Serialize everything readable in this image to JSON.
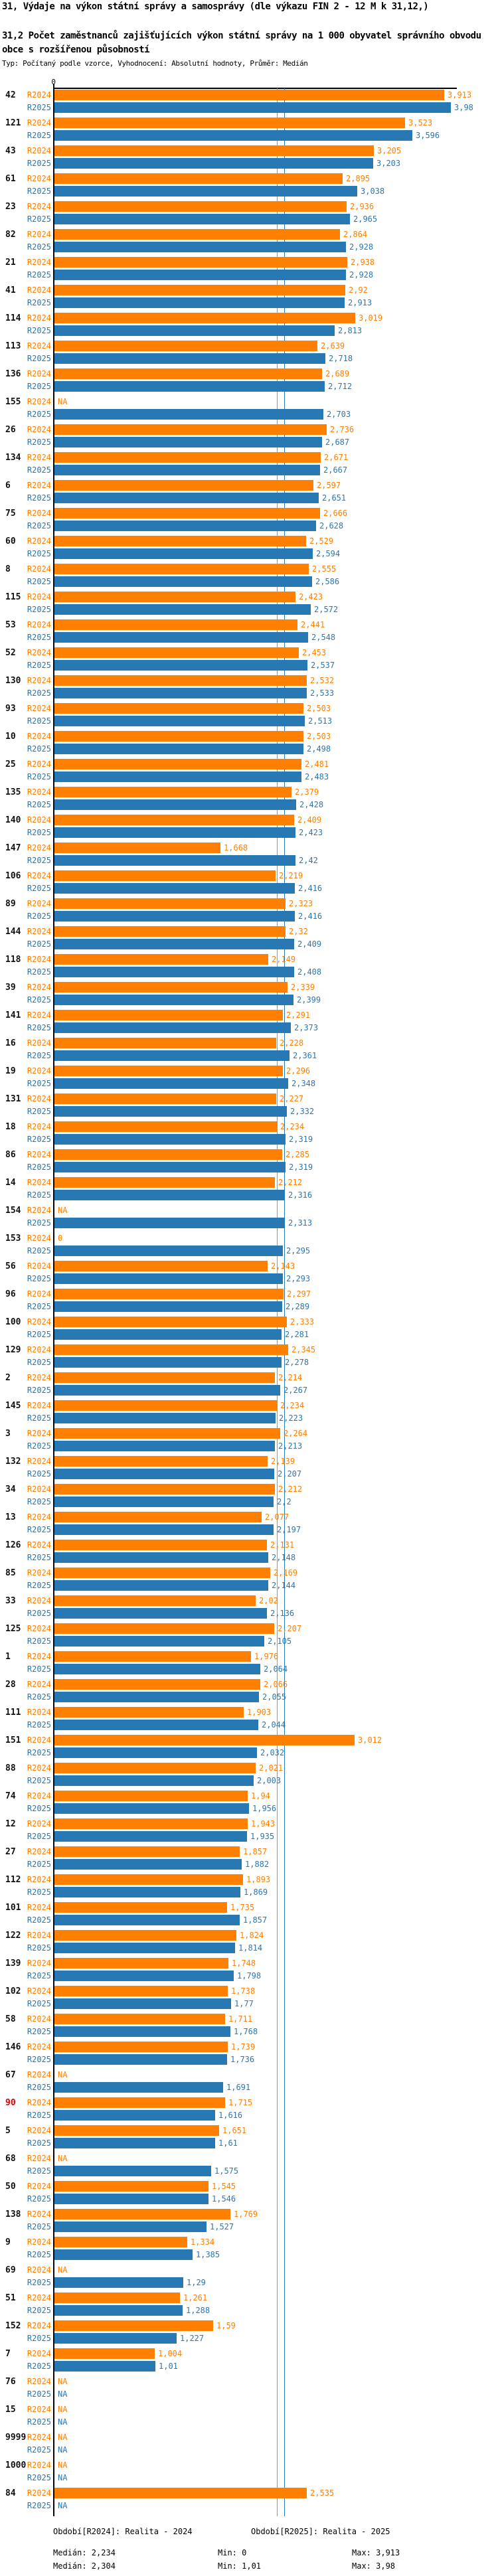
{
  "header": {
    "title_line1": "31, Výdaje na výkon státní správy a samosprávy (dle výkazu FIN 2 - 12 M k 31,12,)",
    "title_line2": "31,2 Počet zaměstnanců zajišťujících výkon státní správy na 1 000 obyvatel správního obvodu obce s rozšířenou působností",
    "subtitle": "Typ: Počítaný podle vzorce, Vyhodnocení: Absolutní hodnoty, Průměr: Medián"
  },
  "axis": {
    "zero_tick_label": "0"
  },
  "colors": {
    "r2024": "#ff8000",
    "r2025": "#2878b4",
    "highlight_id": "#e30000",
    "id_text": "#111111"
  },
  "chart_data": {
    "type": "bar",
    "orientation": "horizontal",
    "series_labels": {
      "r2024": "R2024",
      "r2025": "R2025"
    },
    "legend": {
      "r2024": "Období[R2024]: Realita - 2024",
      "r2025": "Období[R2025]: Realita - 2025"
    },
    "stats": {
      "median_r2024": 2.234,
      "median_r2025": 2.304,
      "min_r2024": 0,
      "min_r2025": 1.01,
      "max_r2024": 3.913,
      "max_r2025": 3.98
    },
    "na_label": "NA",
    "xlim": [
      0,
      4.05
    ],
    "groups": [
      {
        "id": "42",
        "r2024": "3,913",
        "r2025": "3,98"
      },
      {
        "id": "121",
        "r2024": "3,523",
        "r2025": "3,596"
      },
      {
        "id": "43",
        "r2024": "3,205",
        "r2025": "3,203"
      },
      {
        "id": "61",
        "r2024": "2,895",
        "r2025": "3,038"
      },
      {
        "id": "23",
        "r2024": "2,936",
        "r2025": "2,965"
      },
      {
        "id": "82",
        "r2024": "2,864",
        "r2025": "2,928"
      },
      {
        "id": "21",
        "r2024": "2,938",
        "r2025": "2,928"
      },
      {
        "id": "41",
        "r2024": "2,92",
        "r2025": "2,913"
      },
      {
        "id": "114",
        "r2024": "3,019",
        "r2025": "2,813"
      },
      {
        "id": "113",
        "r2024": "2,639",
        "r2025": "2,718"
      },
      {
        "id": "136",
        "r2024": "2,689",
        "r2025": "2,712"
      },
      {
        "id": "155",
        "r2024": "NA",
        "r2025": "2,703"
      },
      {
        "id": "26",
        "r2024": "2,736",
        "r2025": "2,687"
      },
      {
        "id": "134",
        "r2024": "2,671",
        "r2025": "2,667"
      },
      {
        "id": "6",
        "r2024": "2,597",
        "r2025": "2,651"
      },
      {
        "id": "75",
        "r2024": "2,666",
        "r2025": "2,628"
      },
      {
        "id": "60",
        "r2024": "2,529",
        "r2025": "2,594"
      },
      {
        "id": "8",
        "r2024": "2,555",
        "r2025": "2,586"
      },
      {
        "id": "115",
        "r2024": "2,423",
        "r2025": "2,572"
      },
      {
        "id": "53",
        "r2024": "2,441",
        "r2025": "2,548"
      },
      {
        "id": "52",
        "r2024": "2,453",
        "r2025": "2,537"
      },
      {
        "id": "130",
        "r2024": "2,532",
        "r2025": "2,533"
      },
      {
        "id": "93",
        "r2024": "2,503",
        "r2025": "2,513"
      },
      {
        "id": "10",
        "r2024": "2,503",
        "r2025": "2,498"
      },
      {
        "id": "25",
        "r2024": "2,481",
        "r2025": "2,483"
      },
      {
        "id": "135",
        "r2024": "2,379",
        "r2025": "2,428"
      },
      {
        "id": "140",
        "r2024": "2,409",
        "r2025": "2,423"
      },
      {
        "id": "147",
        "r2024": "1,668",
        "r2025": "2,42"
      },
      {
        "id": "106",
        "r2024": "2,219",
        "r2025": "2,416"
      },
      {
        "id": "89",
        "r2024": "2,323",
        "r2025": "2,416"
      },
      {
        "id": "144",
        "r2024": "2,32",
        "r2025": "2,409"
      },
      {
        "id": "118",
        "r2024": "2,149",
        "r2025": "2,408"
      },
      {
        "id": "39",
        "r2024": "2,339",
        "r2025": "2,399"
      },
      {
        "id": "141",
        "r2024": "2,291",
        "r2025": "2,373"
      },
      {
        "id": "16",
        "r2024": "2,228",
        "r2025": "2,361"
      },
      {
        "id": "19",
        "r2024": "2,296",
        "r2025": "2,348"
      },
      {
        "id": "131",
        "r2024": "2,227",
        "r2025": "2,332"
      },
      {
        "id": "18",
        "r2024": "2,234",
        "r2025": "2,319"
      },
      {
        "id": "86",
        "r2024": "2,285",
        "r2025": "2,319"
      },
      {
        "id": "14",
        "r2024": "2,212",
        "r2025": "2,316"
      },
      {
        "id": "154",
        "r2024": "NA",
        "r2025": "2,313"
      },
      {
        "id": "153",
        "r2024": "0",
        "r2025": "2,295"
      },
      {
        "id": "56",
        "r2024": "2,143",
        "r2025": "2,293"
      },
      {
        "id": "96",
        "r2024": "2,297",
        "r2025": "2,289"
      },
      {
        "id": "100",
        "r2024": "2,333",
        "r2025": "2,281"
      },
      {
        "id": "129",
        "r2024": "2,345",
        "r2025": "2,278"
      },
      {
        "id": "2",
        "r2024": "2,214",
        "r2025": "2,267"
      },
      {
        "id": "145",
        "r2024": "2,234",
        "r2025": "2,223"
      },
      {
        "id": "3",
        "r2024": "2,264",
        "r2025": "2,213"
      },
      {
        "id": "132",
        "r2024": "2,139",
        "r2025": "2,207"
      },
      {
        "id": "34",
        "r2024": "2,212",
        "r2025": "2,2"
      },
      {
        "id": "13",
        "r2024": "2,077",
        "r2025": "2,197"
      },
      {
        "id": "126",
        "r2024": "2,131",
        "r2025": "2,148"
      },
      {
        "id": "85",
        "r2024": "2,169",
        "r2025": "2,144"
      },
      {
        "id": "33",
        "r2024": "2,02",
        "r2025": "2,136"
      },
      {
        "id": "125",
        "r2024": "2,207",
        "r2025": "2,105"
      },
      {
        "id": "1",
        "r2024": "1,976",
        "r2025": "2,064"
      },
      {
        "id": "28",
        "r2024": "2,066",
        "r2025": "2,055"
      },
      {
        "id": "111",
        "r2024": "1,903",
        "r2025": "2,044"
      },
      {
        "id": "151",
        "r2024": "3,012",
        "r2025": "2,032"
      },
      {
        "id": "88",
        "r2024": "2,021",
        "r2025": "2,003"
      },
      {
        "id": "74",
        "r2024": "1,94",
        "r2025": "1,956"
      },
      {
        "id": "12",
        "r2024": "1,943",
        "r2025": "1,935"
      },
      {
        "id": "27",
        "r2024": "1,857",
        "r2025": "1,882"
      },
      {
        "id": "112",
        "r2024": "1,893",
        "r2025": "1,869"
      },
      {
        "id": "101",
        "r2024": "1,735",
        "r2025": "1,857"
      },
      {
        "id": "122",
        "r2024": "1,824",
        "r2025": "1,814"
      },
      {
        "id": "139",
        "r2024": "1,748",
        "r2025": "1,798"
      },
      {
        "id": "102",
        "r2024": "1,738",
        "r2025": "1,77"
      },
      {
        "id": "58",
        "r2024": "1,711",
        "r2025": "1,768"
      },
      {
        "id": "146",
        "r2024": "1,739",
        "r2025": "1,736"
      },
      {
        "id": "67",
        "r2024": "NA",
        "r2025": "1,691"
      },
      {
        "id": "90",
        "highlight": true,
        "r2024": "1,715",
        "r2025": "1,616"
      },
      {
        "id": "5",
        "r2024": "1,651",
        "r2025": "1,61"
      },
      {
        "id": "68",
        "r2024": "NA",
        "r2025": "1,575"
      },
      {
        "id": "50",
        "r2024": "1,545",
        "r2025": "1,546"
      },
      {
        "id": "138",
        "r2024": "1,769",
        "r2025": "1,527"
      },
      {
        "id": "9",
        "r2024": "1,334",
        "r2025": "1,385"
      },
      {
        "id": "69",
        "r2024": "NA",
        "r2025": "1,29"
      },
      {
        "id": "51",
        "r2024": "1,261",
        "r2025": "1,288"
      },
      {
        "id": "152",
        "r2024": "1,59",
        "r2025": "1,227"
      },
      {
        "id": "7",
        "r2024": "1,004",
        "r2025": "1,01"
      },
      {
        "id": "76",
        "r2024": "NA",
        "r2025": "NA"
      },
      {
        "id": "15",
        "r2024": "NA",
        "r2025": "NA"
      },
      {
        "id": "9999",
        "r2024": "NA",
        "r2025": "NA"
      },
      {
        "id": "1000",
        "r2024": "NA",
        "r2025": "NA"
      },
      {
        "id": "84",
        "r2024": "2,535",
        "r2025": "NA"
      }
    ]
  },
  "footer": {
    "period_r2024": "Období[R2024]: Realita - 2024",
    "period_r2025": "Období[R2025]: Realita - 2025",
    "median_r2024": "Medián: 2,234",
    "median_r2025": "Medián: 2,304",
    "min_r2024": "Min: 0",
    "min_r2025": "Min: 1,01",
    "max_r2024": "Max: 3,913",
    "max_r2025": "Max: 3,98"
  }
}
